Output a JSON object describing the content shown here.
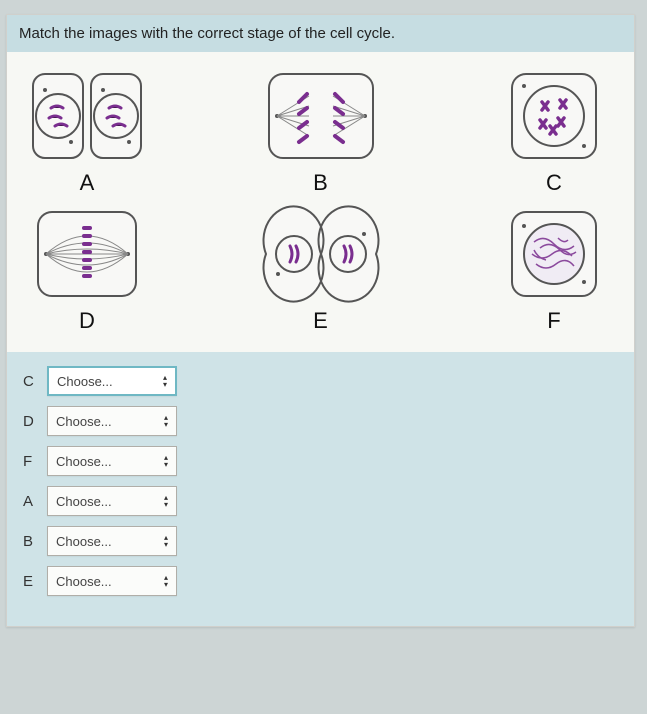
{
  "question": "Match the images with the correct stage of the cell cycle.",
  "figures": {
    "row1": [
      {
        "label": "A"
      },
      {
        "label": "B"
      },
      {
        "label": "C"
      }
    ],
    "row2": [
      {
        "label": "D"
      },
      {
        "label": "E"
      },
      {
        "label": "F"
      }
    ]
  },
  "answers": [
    {
      "letter": "C",
      "placeholder": "Choose...",
      "active": true
    },
    {
      "letter": "D",
      "placeholder": "Choose...",
      "active": false
    },
    {
      "letter": "F",
      "placeholder": "Choose...",
      "active": false
    },
    {
      "letter": "A",
      "placeholder": "Choose...",
      "active": false
    },
    {
      "letter": "B",
      "placeholder": "Choose...",
      "active": false
    },
    {
      "letter": "E",
      "placeholder": "Choose...",
      "active": false
    }
  ],
  "colors": {
    "chromosome": "#7a2e8f",
    "cell_stroke": "#555",
    "membrane_fill": "#f8f8f6",
    "spindle": "#888"
  }
}
